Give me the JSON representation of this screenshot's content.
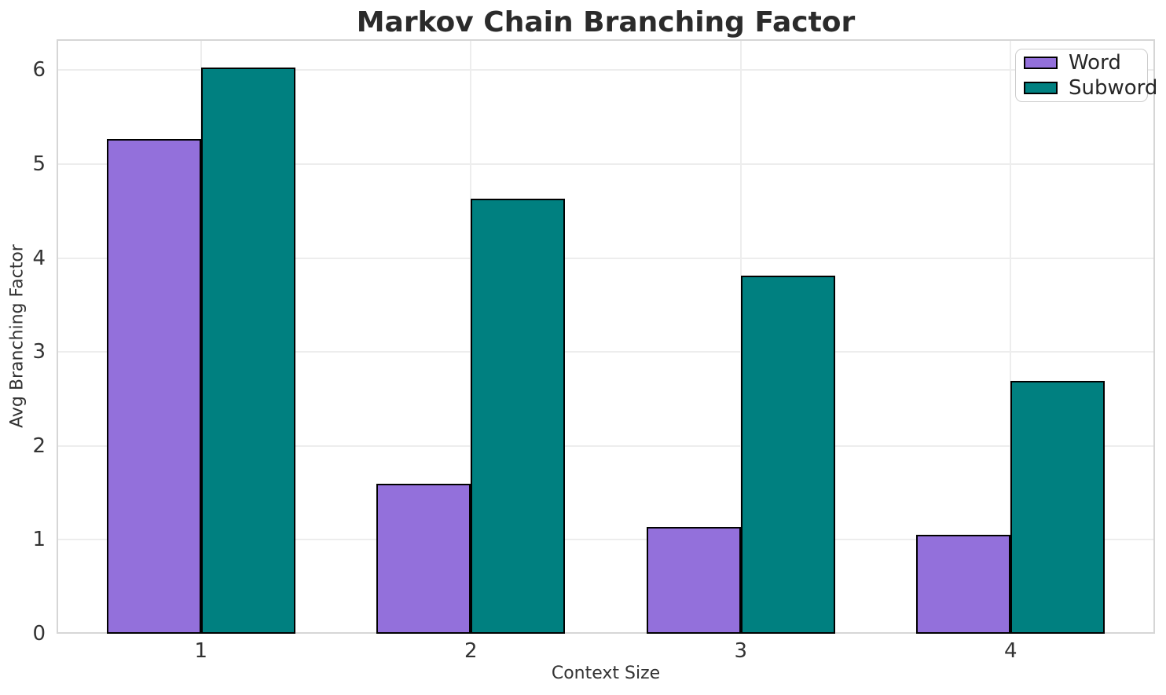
{
  "chart_data": {
    "type": "bar",
    "title": "Markov Chain Branching Factor",
    "xlabel": "Context Size",
    "ylabel": "Avg Branching Factor",
    "categories": [
      "1",
      "2",
      "3",
      "4"
    ],
    "series": [
      {
        "name": "Word",
        "color": "#9370DB",
        "values": [
          5.27,
          1.6,
          1.14,
          1.05
        ]
      },
      {
        "name": "Subword",
        "color": "#008080",
        "values": [
          6.03,
          4.63,
          3.81,
          2.69
        ]
      }
    ],
    "bar_width": 0.35,
    "bar_edge_color": "#000000",
    "yticks": [
      0,
      1,
      2,
      3,
      4,
      5,
      6
    ],
    "ylim": [
      0,
      6.33
    ],
    "grid": true,
    "legend_position": "upper right"
  },
  "style": {
    "grid_color": "#ededed",
    "spine_color": "#d6d6d6",
    "tick_text_color": "#333333",
    "title_color": "#2b2b2b"
  }
}
